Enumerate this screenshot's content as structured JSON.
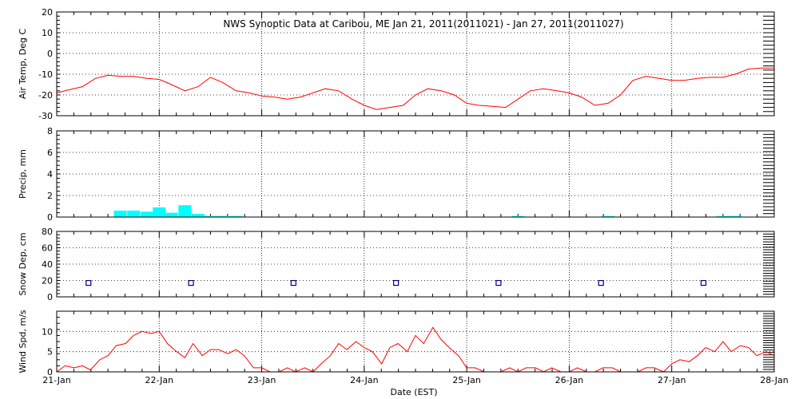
{
  "title": "NWS Synoptic Data at Caribou, ME   Jan 21, 2011(2011021) - Jan 27, 2011(2011027)",
  "xlabel": "Date (EST)",
  "colors": {
    "line": "#ff0000",
    "precip": "#00ffff",
    "snow": "#000080",
    "axis": "#000000"
  },
  "chart_data": [
    {
      "type": "line",
      "panel": "air-temp",
      "ylabel": "Air Temp, Deg C",
      "ylim": [
        -30,
        20
      ],
      "yticks": [
        "-30",
        "-20",
        "-10",
        "0",
        "10",
        "20"
      ],
      "ytick_values": [
        -30,
        -20,
        -10,
        0,
        10,
        20
      ],
      "xlim": [
        0,
        7
      ],
      "grid": true,
      "x": [
        0,
        0.12,
        0.25,
        0.38,
        0.5,
        0.62,
        0.75,
        0.88,
        1.0,
        1.12,
        1.25,
        1.38,
        1.5,
        1.62,
        1.75,
        1.88,
        2.0,
        2.12,
        2.25,
        2.38,
        2.5,
        2.62,
        2.75,
        2.88,
        3.0,
        3.12,
        3.25,
        3.38,
        3.5,
        3.62,
        3.75,
        3.88,
        4.0,
        4.12,
        4.25,
        4.38,
        4.5,
        4.62,
        4.75,
        4.88,
        5.0,
        5.12,
        5.25,
        5.38,
        5.5,
        5.62,
        5.75,
        5.88,
        6.0,
        6.12,
        6.25,
        6.38,
        6.5,
        6.62,
        6.75,
        6.88,
        7.0
      ],
      "values": [
        -19,
        -17.5,
        -16,
        -12,
        -10.5,
        -11,
        -11,
        -12,
        -12.5,
        -15,
        -18,
        -16,
        -11.5,
        -14,
        -18,
        -19,
        -20.5,
        -21,
        -22,
        -21,
        -19,
        -17,
        -18,
        -22,
        -25,
        -27,
        -26,
        -25,
        -20,
        -17,
        -18,
        -20,
        -24,
        -25,
        -25.5,
        -26,
        -22,
        -18,
        -17,
        -18,
        -19,
        -21,
        -25,
        -24,
        -20,
        -13,
        -11,
        -12,
        -13,
        -13,
        -12,
        -11.5,
        -11.5,
        -10,
        -7.5,
        -7,
        -7
      ]
    },
    {
      "type": "bar",
      "panel": "precip",
      "ylabel": "Precip, mm",
      "ylim": [
        0,
        8
      ],
      "yticks": [
        "0",
        "2",
        "4",
        "6",
        "8"
      ],
      "ytick_values": [
        0,
        2,
        4,
        6,
        8
      ],
      "xlim": [
        0,
        7
      ],
      "grid": true,
      "x": [
        0.62,
        0.75,
        0.88,
        1.0,
        1.12,
        1.25,
        1.38,
        1.5,
        1.62,
        1.75,
        4.5,
        5.38,
        6.5,
        6.62
      ],
      "width": 0.125,
      "values": [
        0.6,
        0.6,
        0.5,
        0.9,
        0.4,
        1.1,
        0.3,
        0.1,
        0.1,
        0.1,
        0.1,
        0.1,
        0.1,
        0.1
      ]
    },
    {
      "type": "scatter",
      "panel": "snow-depth",
      "ylabel": "Snow Dep, cm",
      "ylim": [
        0,
        80
      ],
      "yticks": [
        "0",
        "20",
        "40",
        "60",
        "80"
      ],
      "ytick_values": [
        0,
        20,
        40,
        60,
        80
      ],
      "xlim": [
        0,
        7
      ],
      "grid": true,
      "x": [
        0.31,
        1.31,
        2.31,
        3.31,
        4.31,
        5.31,
        6.31
      ],
      "values": [
        17,
        17,
        17,
        17,
        17,
        17,
        17
      ]
    },
    {
      "type": "line",
      "panel": "wind-speed",
      "ylabel": "Wind Spd, m/s",
      "ylim": [
        0,
        15
      ],
      "yticks": [
        "0",
        "5",
        "10"
      ],
      "ytick_values": [
        0,
        5,
        10
      ],
      "xlim": [
        0,
        7
      ],
      "xticks": [
        "21-Jan",
        "22-Jan",
        "23-Jan",
        "24-Jan",
        "25-Jan",
        "26-Jan",
        "27-Jan",
        "28-Jan"
      ],
      "xtick_values": [
        0,
        1,
        2,
        3,
        4,
        5,
        6,
        7
      ],
      "grid": true,
      "x": [
        0,
        0.08,
        0.17,
        0.25,
        0.33,
        0.42,
        0.5,
        0.58,
        0.67,
        0.75,
        0.83,
        0.92,
        1.0,
        1.08,
        1.17,
        1.25,
        1.33,
        1.42,
        1.5,
        1.58,
        1.67,
        1.75,
        1.83,
        1.92,
        2.0,
        2.08,
        2.17,
        2.25,
        2.33,
        2.42,
        2.5,
        2.58,
        2.67,
        2.75,
        2.83,
        2.92,
        3.0,
        3.08,
        3.17,
        3.25,
        3.33,
        3.42,
        3.5,
        3.58,
        3.67,
        3.75,
        3.83,
        3.92,
        4.0,
        4.08,
        4.17,
        4.25,
        4.33,
        4.42,
        4.5,
        4.58,
        4.67,
        4.75,
        4.83,
        4.92,
        5.0,
        5.08,
        5.17,
        5.25,
        5.33,
        5.42,
        5.5,
        5.58,
        5.67,
        5.75,
        5.83,
        5.92,
        6.0,
        6.08,
        6.17,
        6.25,
        6.33,
        6.42,
        6.5,
        6.58,
        6.67,
        6.75,
        6.83,
        6.92,
        7.0
      ],
      "values": [
        0,
        1.5,
        1,
        1.5,
        0.5,
        3,
        4,
        6.5,
        7,
        9,
        10,
        9.5,
        10,
        7,
        5,
        3.5,
        7,
        4,
        5.5,
        5.5,
        4.5,
        5.5,
        4,
        1,
        1,
        0,
        0,
        1,
        0,
        1,
        0,
        2,
        4,
        7,
        5.5,
        7.5,
        6,
        5,
        2,
        6,
        7,
        5,
        9,
        7,
        11,
        8,
        6,
        4,
        1,
        1,
        0,
        0,
        0,
        1,
        0,
        1,
        1,
        0,
        1,
        0,
        0,
        1,
        0,
        0,
        1,
        1,
        0,
        0,
        0,
        1,
        1,
        0,
        2,
        3,
        2.5,
        4,
        6,
        5,
        7.5,
        5,
        6.5,
        6,
        4,
        5,
        4
      ]
    }
  ]
}
